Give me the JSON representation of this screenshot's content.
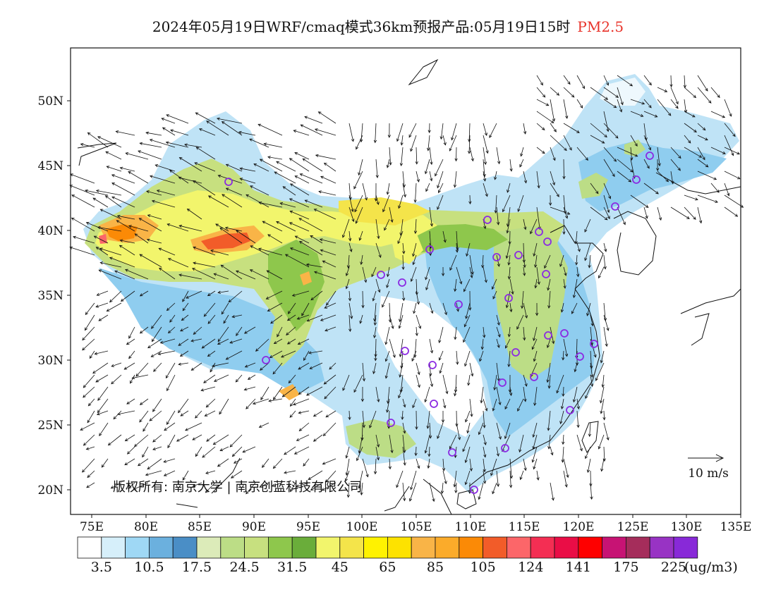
{
  "title": {
    "main": "2024年05月19日WRF/cmaq模式36km预报产品:05月19日15时",
    "pollutant": "PM2.5",
    "pollutant_color": "#e8332a"
  },
  "axes": {
    "lat_labels": [
      "50N",
      "45N",
      "40N",
      "35N",
      "30N",
      "25N",
      "20N"
    ],
    "lon_labels": [
      "75E",
      "80E",
      "85E",
      "90E",
      "95E",
      "100E",
      "105E",
      "110E",
      "115E",
      "120E",
      "125E",
      "130E",
      "135E"
    ]
  },
  "wind_scale_label": "10 m/s",
  "copyright": "版权所有: 南京大学 | 南京创蓝科技有限公司",
  "colorbar": {
    "colors": [
      "#ffffff",
      "#d6effa",
      "#9fd8f5",
      "#6bb0de",
      "#4a8ec6",
      "#dcebb9",
      "#bcdd86",
      "#c7e07f",
      "#8ec74c",
      "#6aad3a",
      "#f2f56c",
      "#f4e44a",
      "#fff200",
      "#fde200",
      "#f9b447",
      "#fbab2a",
      "#fb8a06",
      "#f25c29",
      "#fc6669",
      "#f42e53",
      "#ea0d46",
      "#fe0000",
      "#c71374",
      "#a52d5b",
      "#9833c4",
      "#8829d8"
    ],
    "labels": [
      "3.5",
      "10.5",
      "17.5",
      "24.5",
      "31.5",
      "45",
      "65",
      "85",
      "105",
      "124",
      "141",
      "175",
      "225"
    ],
    "units": "(ug/m3)"
  },
  "station_color": "#8b2be2"
}
